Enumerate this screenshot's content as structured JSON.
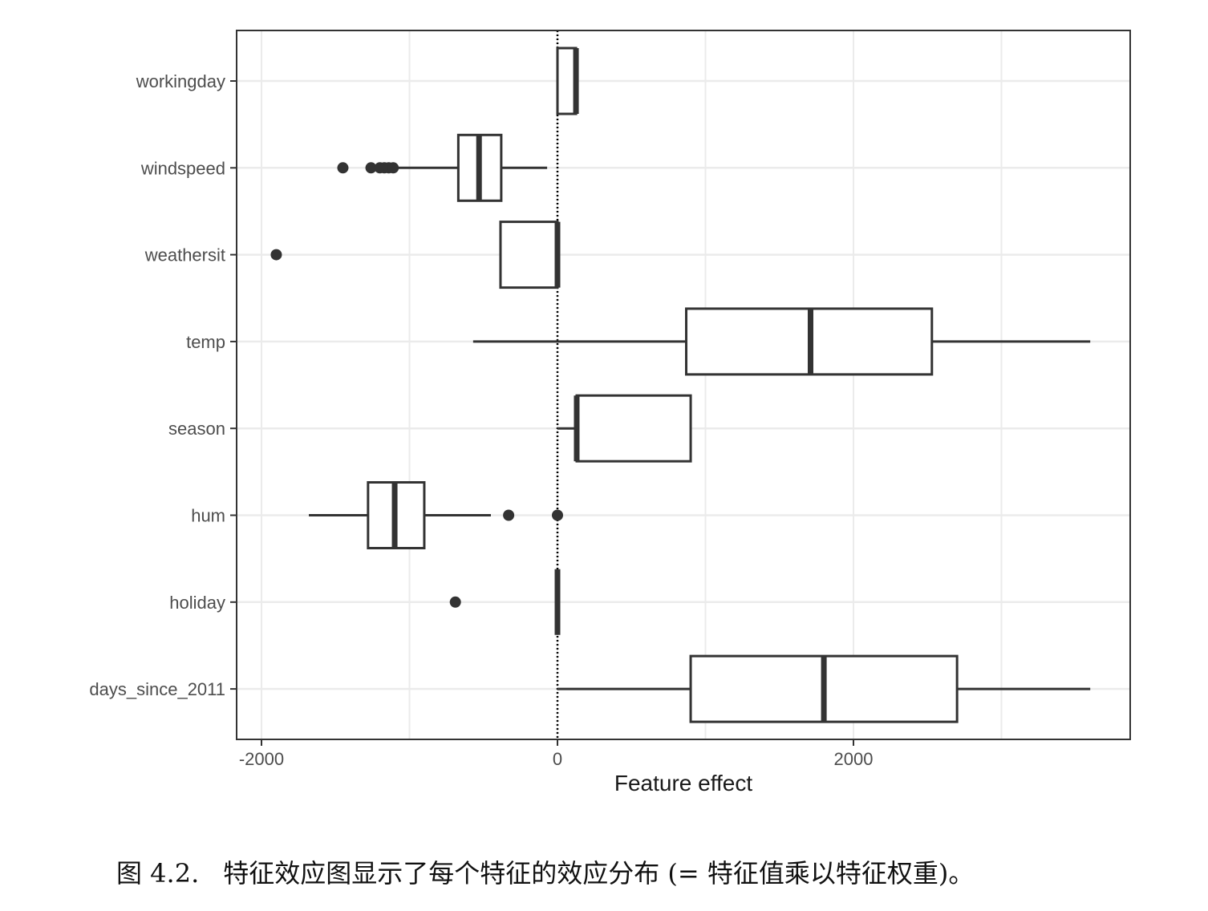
{
  "chart_data": {
    "type": "boxplot",
    "orientation": "horizontal",
    "xlabel": "Feature effect",
    "ylabel": "",
    "xlim": [
      -2200,
      3800
    ],
    "x_ticks": [
      -2000,
      0,
      2000
    ],
    "x_tick_labels": [
      "-2000",
      "0",
      "2000"
    ],
    "reference_line": {
      "x": 0,
      "style": "dotted"
    },
    "grid": true,
    "categories": [
      "workingday",
      "windspeed",
      "weathersit",
      "temp",
      "season",
      "hum",
      "holiday",
      "days_since_2011"
    ],
    "series": [
      {
        "feature": "workingday",
        "whisker_low": 0,
        "q1": 0,
        "median": 125,
        "q3": 125,
        "whisker_high": 125,
        "outliers": []
      },
      {
        "feature": "windspeed",
        "whisker_low": -1100,
        "q1": -670,
        "median": -530,
        "q3": -380,
        "whisker_high": -70,
        "outliers": [
          -1450,
          -1260,
          -1200,
          -1170,
          -1140,
          -1110
        ]
      },
      {
        "feature": "weathersit",
        "whisker_low": -385,
        "q1": -385,
        "median": 0,
        "q3": 0,
        "whisker_high": 0,
        "outliers": [
          -1900
        ]
      },
      {
        "feature": "temp",
        "whisker_low": -570,
        "q1": 870,
        "median": 1710,
        "q3": 2530,
        "whisker_high": 3600,
        "outliers": []
      },
      {
        "feature": "season",
        "whisker_low": 0,
        "q1": 130,
        "median": 130,
        "q3": 900,
        "whisker_high": 900,
        "outliers": []
      },
      {
        "feature": "hum",
        "whisker_low": -1680,
        "q1": -1280,
        "median": -1100,
        "q3": -900,
        "whisker_high": -450,
        "outliers": [
          -330,
          0
        ]
      },
      {
        "feature": "holiday",
        "whisker_low": 0,
        "q1": 0,
        "median": 0,
        "q3": 0,
        "whisker_high": 0,
        "outliers": [
          -690
        ]
      },
      {
        "feature": "days_since_2011",
        "whisker_low": 0,
        "q1": 900,
        "median": 1800,
        "q3": 2700,
        "whisker_high": 3600,
        "outliers": []
      }
    ]
  },
  "caption": {
    "label": "图 4.2.",
    "text": "特征效应图显示了每个特征的效应分布 (= 特征值乘以特征权重)。"
  },
  "colors": {
    "box_stroke": "#333333",
    "grid": "#ebebeb",
    "panel_border": "#333333",
    "text": "#4d4d4d"
  }
}
